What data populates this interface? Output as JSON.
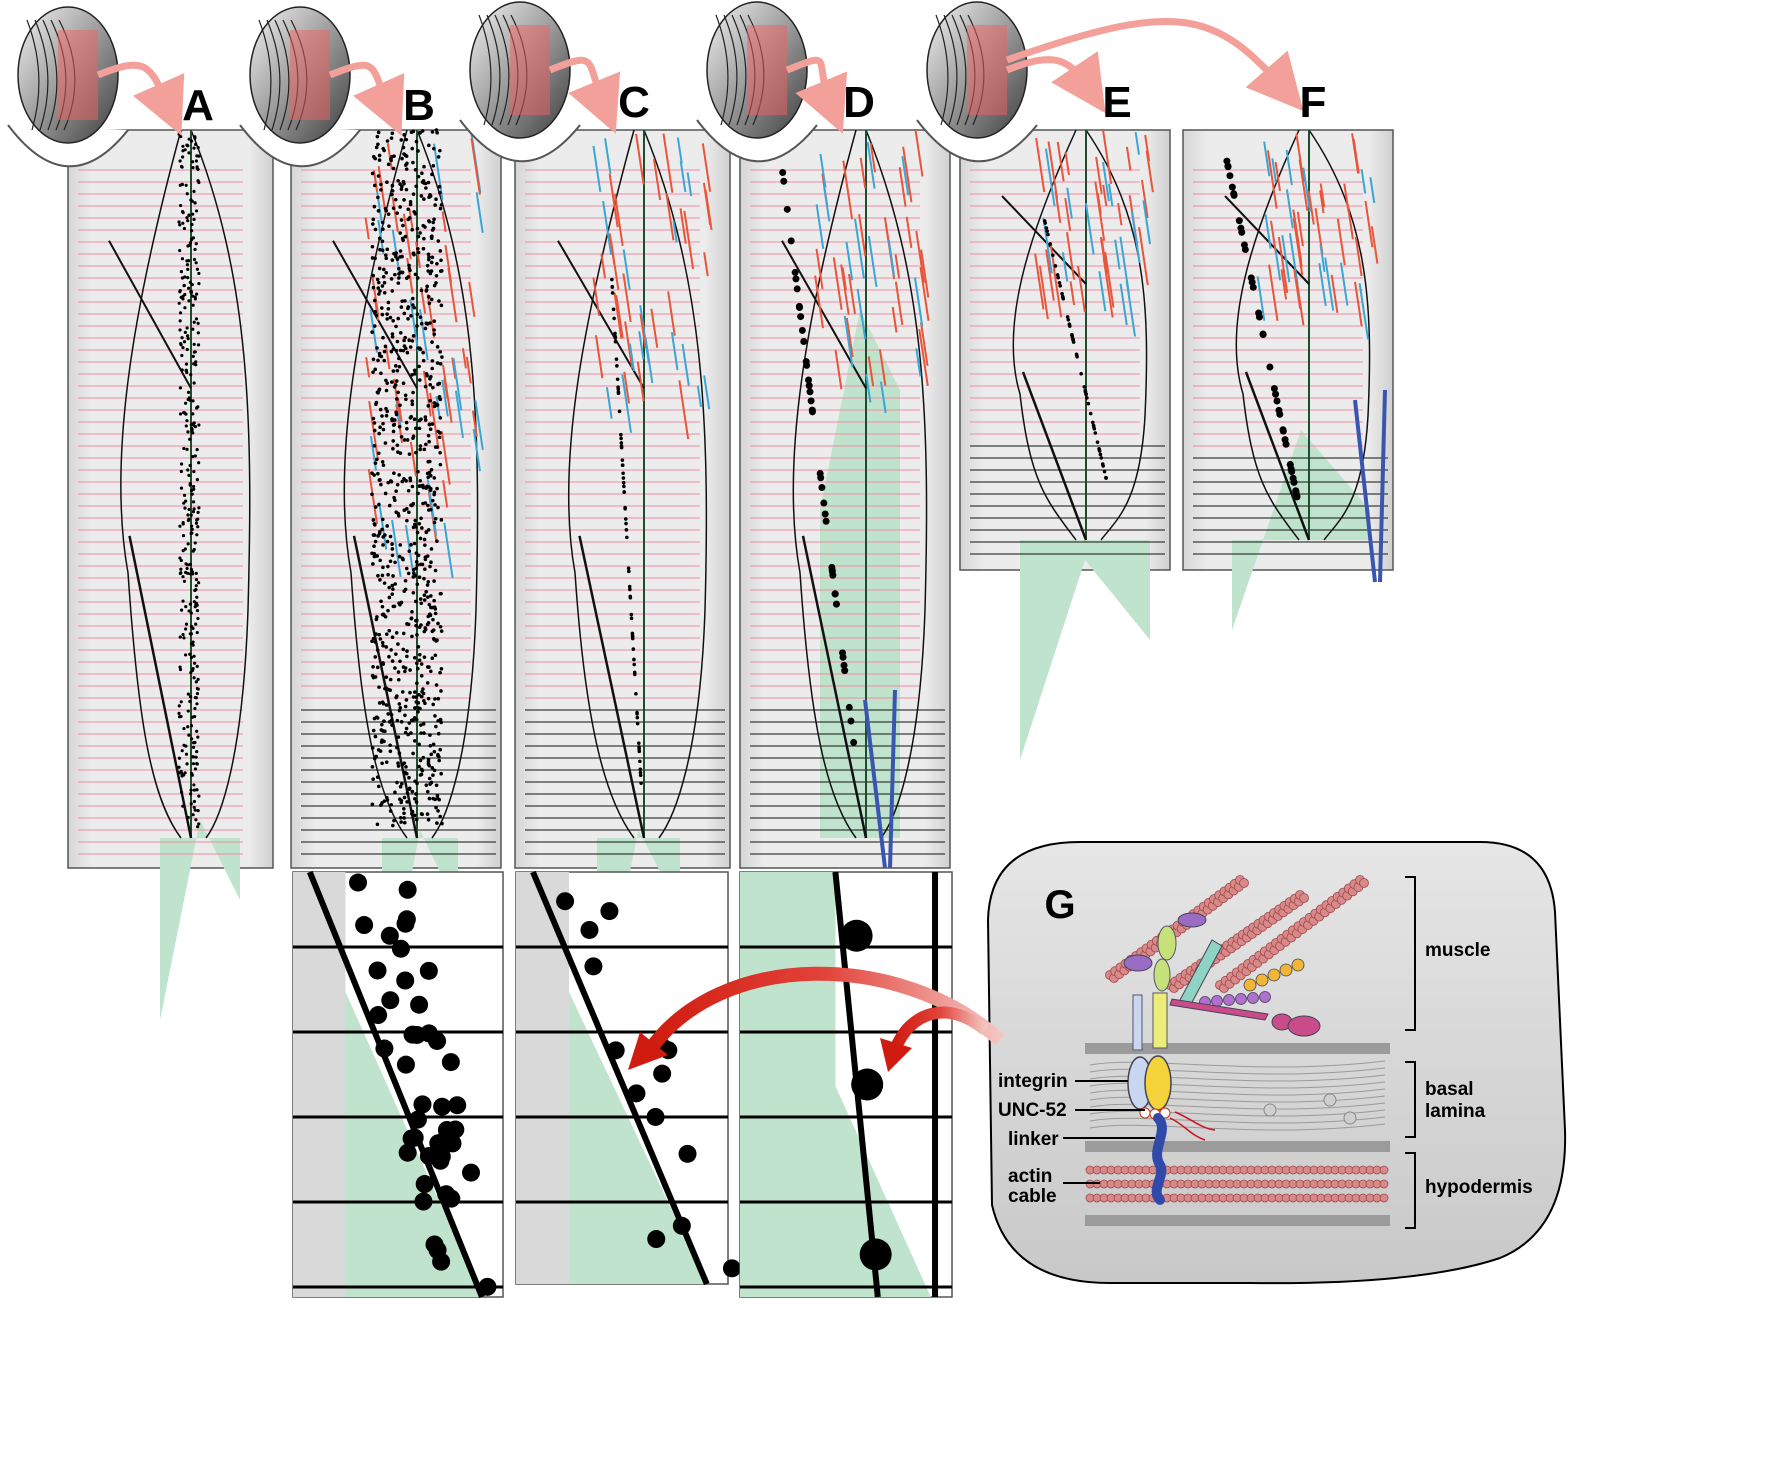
{
  "panels": [
    {
      "id": "A",
      "label": "A"
    },
    {
      "id": "B",
      "label": "B"
    },
    {
      "id": "C",
      "label": "C"
    },
    {
      "id": "D",
      "label": "D"
    },
    {
      "id": "E",
      "label": "E"
    },
    {
      "id": "F",
      "label": "F"
    }
  ],
  "panel_g": {
    "label": "G",
    "layers": [
      "muscle",
      "basal\nlamina",
      "hypodermis"
    ],
    "molecules": [
      "integrin",
      "UNC-52",
      "linker",
      "actin\ncable"
    ]
  },
  "colors": {
    "background_gray": "#d9d9d9",
    "pink_lines": "#f08ca0",
    "green_zone": "#bfe3cc",
    "red_filament": "#e8553a",
    "blue_filament": "#3aa6d6",
    "dark_blue": "#3a55b0",
    "arrow_pink": "#f3a09a",
    "arrow_red": "#d92b1e"
  },
  "icons": [
    "embryo-icon",
    "curved-arrow-icon"
  ]
}
